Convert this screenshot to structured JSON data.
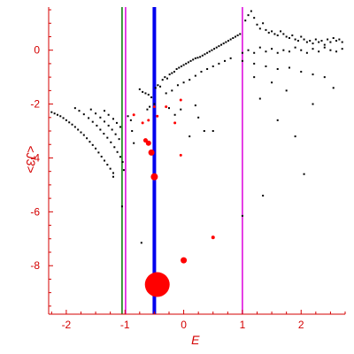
{
  "chart_data": {
    "type": "scatter",
    "xlabel": "E",
    "ylabel": "<J3>",
    "xlim": [
      -2.3,
      2.75
    ],
    "ylim": [
      -9.8,
      1.6
    ],
    "x_ticks": [
      -2,
      -1,
      0,
      1,
      2
    ],
    "x_tick_labels": [
      "-2",
      "-1",
      "0",
      "1",
      "2"
    ],
    "y_ticks": [
      0,
      -2,
      -4,
      -6,
      -8
    ],
    "y_tick_labels": [
      "0",
      "-2",
      "-4",
      "-6",
      "-8"
    ],
    "grid": false,
    "vertical_lines": [
      {
        "x": -1.05,
        "color": "#007700",
        "width": 1.5
      },
      {
        "x": -0.99,
        "color": "#dd00dd",
        "width": 1.5
      },
      {
        "x": -0.5,
        "color": "#0000ee",
        "width": 4
      },
      {
        "x": 1.0,
        "color": "#dd00dd",
        "width": 1.5
      }
    ],
    "colors": {
      "axis": "#d40000",
      "points": "#000000",
      "markers": "#ff0000"
    },
    "series": [
      {
        "kind": "dots",
        "points": [
          [
            -2.25,
            -2.3
          ],
          [
            -2.2,
            -2.35
          ],
          [
            -2.15,
            -2.4
          ],
          [
            -2.1,
            -2.45
          ],
          [
            -2.05,
            -2.52
          ],
          [
            -2.0,
            -2.6
          ],
          [
            -1.95,
            -2.68
          ],
          [
            -1.9,
            -2.76
          ],
          [
            -1.85,
            -2.85
          ],
          [
            -1.8,
            -2.95
          ],
          [
            -1.75,
            -3.05
          ],
          [
            -1.7,
            -3.15
          ],
          [
            -1.65,
            -3.27
          ],
          [
            -1.6,
            -3.4
          ],
          [
            -1.55,
            -3.52
          ],
          [
            -1.5,
            -3.65
          ],
          [
            -1.45,
            -3.8
          ],
          [
            -1.4,
            -3.95
          ],
          [
            -1.35,
            -4.1
          ],
          [
            -1.3,
            -4.25
          ],
          [
            -1.25,
            -4.4
          ],
          [
            -1.2,
            -4.56
          ],
          [
            -1.85,
            -2.15
          ],
          [
            -1.78,
            -2.25
          ],
          [
            -1.7,
            -2.38
          ],
          [
            -1.62,
            -2.52
          ],
          [
            -1.55,
            -2.66
          ],
          [
            -1.48,
            -2.8
          ],
          [
            -1.42,
            -2.95
          ],
          [
            -1.36,
            -3.1
          ],
          [
            -1.3,
            -3.25
          ],
          [
            -1.24,
            -3.42
          ],
          [
            -1.18,
            -3.6
          ],
          [
            -1.13,
            -3.78
          ],
          [
            -1.08,
            -3.96
          ],
          [
            -1.04,
            -4.15
          ],
          [
            -1.58,
            -2.2
          ],
          [
            -1.5,
            -2.35
          ],
          [
            -1.42,
            -2.5
          ],
          [
            -1.35,
            -2.65
          ],
          [
            -1.28,
            -2.8
          ],
          [
            -1.22,
            -2.95
          ],
          [
            -1.16,
            -3.12
          ],
          [
            -1.1,
            -3.3
          ],
          [
            -1.35,
            -2.25
          ],
          [
            -1.28,
            -2.4
          ],
          [
            -1.2,
            -2.55
          ],
          [
            -1.14,
            -2.7
          ],
          [
            -1.08,
            -2.85
          ],
          [
            -1.2,
            -4.7
          ],
          [
            -1.05,
            -5.8
          ],
          [
            -1.02,
            -4.45
          ],
          [
            -0.95,
            -2.45
          ],
          [
            -0.9,
            -2.6
          ],
          [
            -0.88,
            -3.0
          ],
          [
            -0.85,
            -3.45
          ],
          [
            -0.72,
            -7.15
          ],
          [
            -0.62,
            -2.2
          ],
          [
            -0.58,
            -2.1
          ],
          [
            -0.5,
            -2.0
          ],
          [
            -0.75,
            -1.45
          ],
          [
            -0.7,
            -1.55
          ],
          [
            -0.65,
            -1.6
          ],
          [
            -0.6,
            -1.65
          ],
          [
            -0.55,
            -1.75
          ],
          [
            -0.48,
            -1.4
          ],
          [
            -0.44,
            -1.3
          ],
          [
            -0.4,
            -1.35
          ],
          [
            -0.36,
            -1.1
          ],
          [
            -0.32,
            -1.0
          ],
          [
            -0.28,
            -1.05
          ],
          [
            -0.24,
            -0.9
          ],
          [
            -0.2,
            -0.85
          ],
          [
            -0.16,
            -0.8
          ],
          [
            -0.12,
            -0.7
          ],
          [
            -0.08,
            -0.65
          ],
          [
            -0.04,
            -0.6
          ],
          [
            0.0,
            -0.55
          ],
          [
            0.04,
            -0.5
          ],
          [
            0.08,
            -0.45
          ],
          [
            0.12,
            -0.4
          ],
          [
            0.16,
            -0.35
          ],
          [
            0.2,
            -0.3
          ],
          [
            0.24,
            -0.28
          ],
          [
            0.28,
            -0.25
          ],
          [
            0.32,
            -0.2
          ],
          [
            0.36,
            -0.15
          ],
          [
            0.4,
            -0.1
          ],
          [
            0.44,
            -0.05
          ],
          [
            0.48,
            0.0
          ],
          [
            0.52,
            0.05
          ],
          [
            0.56,
            0.1
          ],
          [
            0.6,
            0.15
          ],
          [
            0.64,
            0.2
          ],
          [
            0.68,
            0.25
          ],
          [
            0.72,
            0.3
          ],
          [
            0.76,
            0.35
          ],
          [
            0.8,
            0.4
          ],
          [
            0.84,
            0.45
          ],
          [
            0.88,
            0.5
          ],
          [
            0.92,
            0.55
          ],
          [
            0.96,
            0.6
          ],
          [
            -0.3,
            -1.6
          ],
          [
            -0.2,
            -1.5
          ],
          [
            -0.1,
            -1.3
          ],
          [
            0.0,
            -1.2
          ],
          [
            0.1,
            -1.1
          ],
          [
            0.2,
            -0.95
          ],
          [
            0.3,
            -0.8
          ],
          [
            0.4,
            -0.7
          ],
          [
            0.5,
            -0.6
          ],
          [
            0.6,
            -0.5
          ],
          [
            0.7,
            -0.4
          ],
          [
            0.8,
            -0.3
          ],
          [
            -0.25,
            -2.15
          ],
          [
            -0.15,
            -2.4
          ],
          [
            -0.05,
            -2.2
          ],
          [
            0.2,
            -2.05
          ],
          [
            0.35,
            -3.0
          ],
          [
            0.5,
            -3.0
          ],
          [
            0.1,
            -3.2
          ],
          [
            0.25,
            -2.5
          ],
          [
            1.05,
            1.1
          ],
          [
            1.1,
            1.3
          ],
          [
            1.15,
            1.45
          ],
          [
            1.2,
            1.2
          ],
          [
            1.25,
            0.95
          ],
          [
            1.3,
            0.8
          ],
          [
            1.35,
            1.0
          ],
          [
            1.4,
            0.75
          ],
          [
            1.45,
            0.65
          ],
          [
            1.5,
            0.7
          ],
          [
            1.55,
            0.6
          ],
          [
            1.6,
            0.55
          ],
          [
            1.65,
            0.7
          ],
          [
            1.7,
            0.6
          ],
          [
            1.75,
            0.5
          ],
          [
            1.8,
            0.45
          ],
          [
            1.85,
            0.55
          ],
          [
            1.9,
            0.4
          ],
          [
            1.95,
            0.35
          ],
          [
            2.0,
            0.5
          ],
          [
            2.05,
            0.4
          ],
          [
            2.1,
            0.3
          ],
          [
            2.15,
            0.35
          ],
          [
            2.2,
            0.25
          ],
          [
            2.25,
            0.4
          ],
          [
            2.3,
            0.3
          ],
          [
            2.35,
            0.35
          ],
          [
            2.4,
            0.2
          ],
          [
            2.45,
            0.4
          ],
          [
            2.5,
            0.3
          ],
          [
            2.55,
            0.45
          ],
          [
            2.6,
            0.35
          ],
          [
            2.65,
            0.4
          ],
          [
            2.7,
            0.3
          ],
          [
            1.0,
            -0.1
          ],
          [
            1.1,
            0.0
          ],
          [
            1.2,
            -0.1
          ],
          [
            1.3,
            0.1
          ],
          [
            1.4,
            -0.05
          ],
          [
            1.5,
            0.05
          ],
          [
            1.6,
            -0.1
          ],
          [
            1.7,
            0.0
          ],
          [
            1.8,
            -0.05
          ],
          [
            1.9,
            0.1
          ],
          [
            2.0,
            0.0
          ],
          [
            2.1,
            -0.1
          ],
          [
            2.2,
            0.05
          ],
          [
            2.3,
            -0.05
          ],
          [
            2.4,
            0.1
          ],
          [
            2.5,
            0.0
          ],
          [
            2.6,
            -0.05
          ],
          [
            2.7,
            0.05
          ],
          [
            1.0,
            -0.4
          ],
          [
            1.2,
            -0.5
          ],
          [
            1.4,
            -0.6
          ],
          [
            1.6,
            -0.7
          ],
          [
            1.8,
            -0.65
          ],
          [
            2.0,
            -0.8
          ],
          [
            2.2,
            -0.9
          ],
          [
            2.4,
            -1.0
          ],
          [
            2.55,
            -1.4
          ],
          [
            1.3,
            -1.8
          ],
          [
            1.6,
            -2.6
          ],
          [
            1.9,
            -3.2
          ],
          [
            2.2,
            -2.0
          ],
          [
            2.05,
            -4.6
          ],
          [
            1.35,
            -5.4
          ],
          [
            1.0,
            -6.15
          ],
          [
            1.2,
            -1.0
          ],
          [
            1.5,
            -1.2
          ],
          [
            1.75,
            -1.5
          ]
        ]
      },
      {
        "kind": "markers",
        "points": [
          [
            -0.85,
            -2.4,
            1.5
          ],
          [
            -0.7,
            -2.7,
            1.5
          ],
          [
            -0.5,
            -2.1,
            1.5
          ],
          [
            -0.6,
            -2.6,
            1.5
          ],
          [
            -0.45,
            -2.45,
            1.5
          ],
          [
            -0.3,
            -2.1,
            1.5
          ],
          [
            -0.15,
            -2.7,
            1.5
          ],
          [
            -0.05,
            -1.85,
            1.5
          ],
          [
            -0.65,
            -3.35,
            2.5
          ],
          [
            -0.6,
            -3.45,
            3
          ],
          [
            -0.55,
            -3.8,
            3.5
          ],
          [
            -0.5,
            -4.7,
            4
          ],
          [
            -0.05,
            -3.9,
            1.5
          ],
          [
            0.5,
            -6.95,
            2
          ],
          [
            0.0,
            -7.8,
            3.5
          ],
          [
            -0.45,
            -8.7,
            14
          ]
        ]
      }
    ]
  }
}
